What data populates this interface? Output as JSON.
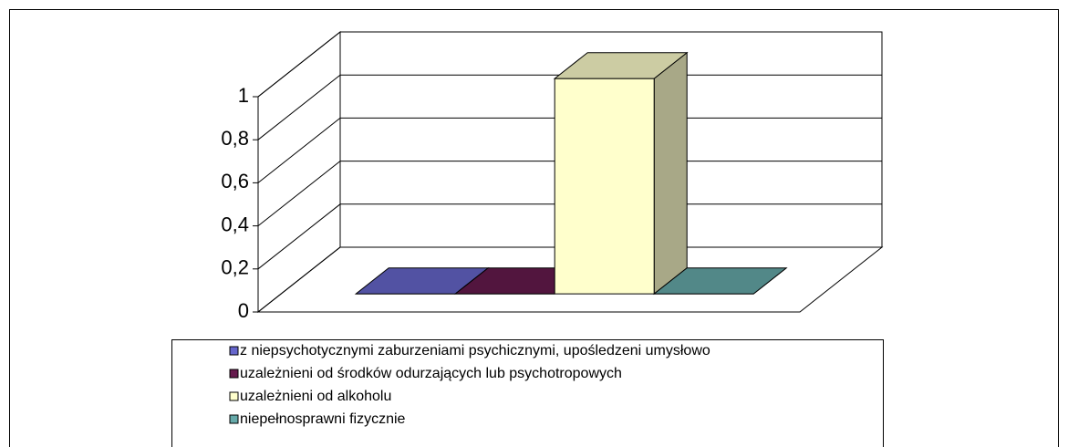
{
  "chart_data": {
    "type": "bar3d",
    "series": [
      {
        "name": "z niepsychotycznymi zaburzeniami psychicznymi, upośledzeni umysłowo",
        "color": "#6666cc",
        "values": [
          0
        ]
      },
      {
        "name": "uzależnieni od środków odurzających lub psychotropowych",
        "color": "#661a4d",
        "values": [
          0
        ]
      },
      {
        "name": "uzależnieni od alkoholu",
        "color": "#ffffcc",
        "values": [
          1
        ]
      },
      {
        "name": "niepełnosprawni fizycznie",
        "color": "#66aaaa",
        "values": [
          0
        ]
      }
    ],
    "ylim": [
      0,
      1
    ],
    "yticks": [
      0,
      {
        "value": 0.2,
        "label": "0,2"
      },
      {
        "value": 0.4,
        "label": "0,4"
      },
      {
        "value": 0.6,
        "label": "0,6"
      },
      {
        "value": 0.8,
        "label": "0,8"
      },
      1
    ],
    "grid": true,
    "legend": "bottom"
  }
}
